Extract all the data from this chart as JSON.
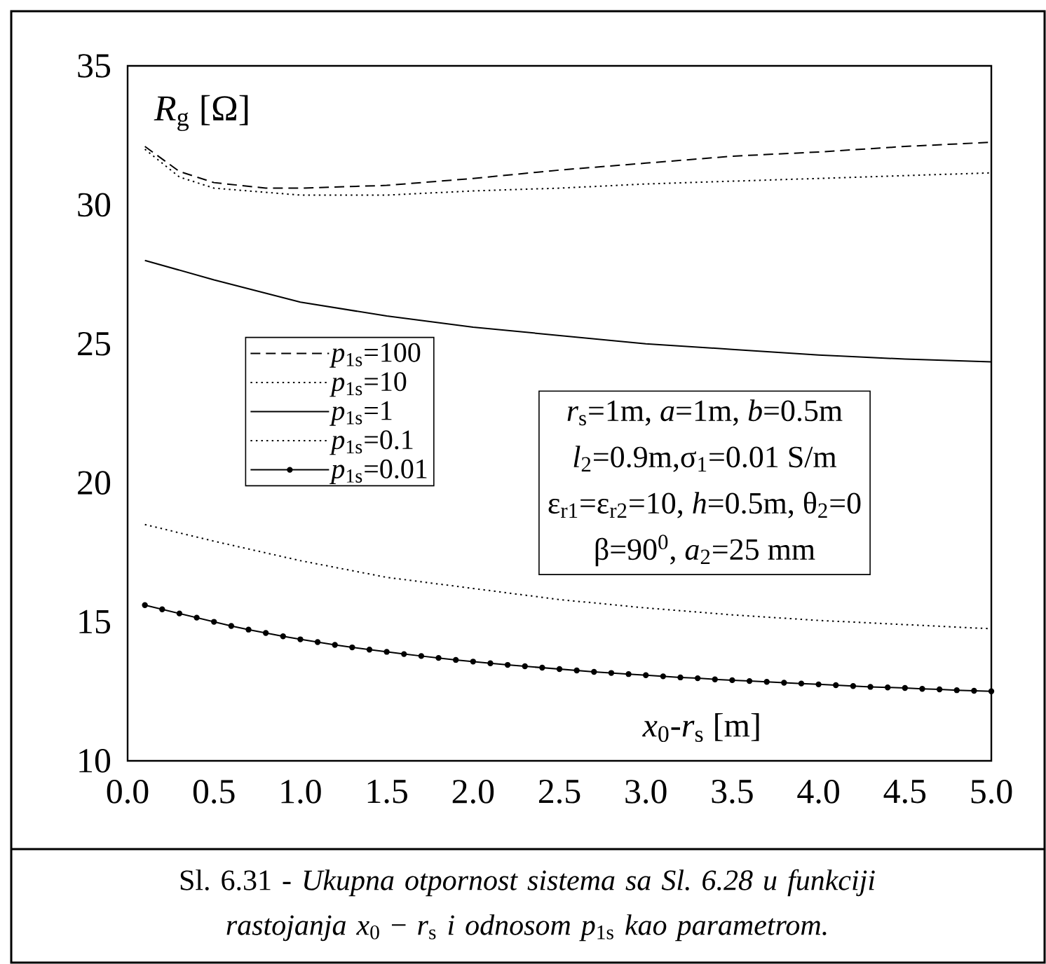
{
  "chart_data": {
    "type": "line",
    "title": "Sl. 6.31 - *Ukupna otpornost sistema sa Sl. 6.28 u funkciji rastojanja* *x*$_{0}$ − *r*$_{s}$ *i odnosom* *p*$_{1s}$ *kao parametrom.*",
    "xlabel": "*x*$_{0}$-*r*$_{s}$ [m]",
    "ylabel": "*R*$_{g}$ [Ω]",
    "annotations": [
      "*r*$_{s}$=1m, *a*=1m, *b*=0.5m",
      "*l*$_{2}$=0.9m,σ$_{1}$=0.01 S/m",
      "ε$_{r1}$=ε$_{r2}$=10, *h*=0.5m, θ$_{2}$=0",
      "β=90$^{0}$, *a*$_{2}$=25 mm"
    ],
    "xlim": [
      0,
      5
    ],
    "ylim": [
      10,
      35
    ],
    "xticks": [
      {
        "value": 0,
        "label": "0.0"
      },
      0.5,
      {
        "value": 1,
        "label": "1.0"
      },
      1.5,
      {
        "value": 2,
        "label": "2.0"
      },
      2.5,
      {
        "value": 3,
        "label": "3.0"
      },
      3.5,
      {
        "value": 4,
        "label": "4.0"
      },
      4.5,
      {
        "value": 5,
        "label": "5.0"
      }
    ],
    "yticks": [
      10,
      15,
      20,
      25,
      30,
      35
    ],
    "legend": "left",
    "grid": false,
    "series": [
      {
        "name": "*p*$_{1s}$=100",
        "color": "#000000",
        "line_style": "dashed",
        "marker": "none",
        "x": [
          0.1,
          0.3,
          0.5,
          0.8,
          1.0,
          1.5,
          2.0,
          2.5,
          3.0,
          3.5,
          4.0,
          4.5,
          5.0
        ],
        "values": [
          32.1,
          31.2,
          30.8,
          30.6,
          30.6,
          30.7,
          30.95,
          31.25,
          31.5,
          31.75,
          31.9,
          32.1,
          32.25
        ]
      },
      {
        "name": "*p*$_{1s}$=10",
        "color": "#000000",
        "line_style": "dotted",
        "marker": "none",
        "x": [
          0.1,
          0.3,
          0.5,
          1.0,
          1.5,
          2.0,
          2.5,
          3.0,
          3.5,
          4.0,
          4.5,
          5.0
        ],
        "values": [
          32.0,
          31.0,
          30.6,
          30.35,
          30.35,
          30.5,
          30.6,
          30.75,
          30.85,
          30.95,
          31.05,
          31.15
        ]
      },
      {
        "name": "*p*$_{1s}$=1",
        "color": "#000000",
        "line_style": "solid",
        "marker": "none",
        "x": [
          0.1,
          0.5,
          1.0,
          1.5,
          2.0,
          2.5,
          3.0,
          3.5,
          4.0,
          4.5,
          5.0
        ],
        "values": [
          28.0,
          27.3,
          26.5,
          26.0,
          25.6,
          25.3,
          25.0,
          24.8,
          24.6,
          24.45,
          24.35
        ]
      },
      {
        "name": "*p*$_{1s}$=0.1",
        "color": "#000000",
        "line_style": "dotted",
        "marker": "none",
        "x": [
          0.1,
          0.5,
          1.0,
          1.5,
          2.0,
          2.5,
          3.0,
          3.5,
          4.0,
          4.5,
          5.0
        ],
        "values": [
          18.5,
          17.9,
          17.2,
          16.6,
          16.2,
          15.8,
          15.5,
          15.25,
          15.05,
          14.9,
          14.75
        ]
      },
      {
        "name": "*p*$_{1s}$=0.01",
        "color": "#000000",
        "line_style": "solid",
        "marker": "circle",
        "x": [
          0.1,
          0.2,
          0.3,
          0.4,
          0.5,
          0.6,
          0.7,
          0.8,
          0.9,
          1.0,
          1.1,
          1.2,
          1.3,
          1.4,
          1.5,
          1.6,
          1.7,
          1.8,
          1.9,
          2.0,
          2.1,
          2.2,
          2.3,
          2.4,
          2.5,
          2.6,
          2.7,
          2.8,
          2.9,
          3.0,
          3.1,
          3.2,
          3.3,
          3.4,
          3.5,
          3.6,
          3.7,
          3.8,
          3.9,
          4.0,
          4.1,
          4.2,
          4.3,
          4.4,
          4.5,
          4.6,
          4.7,
          4.8,
          4.9,
          5.0
        ],
        "values": [
          15.6,
          15.45,
          15.3,
          15.15,
          15.0,
          14.85,
          14.72,
          14.6,
          14.48,
          14.37,
          14.27,
          14.17,
          14.08,
          14.0,
          13.92,
          13.84,
          13.77,
          13.7,
          13.63,
          13.57,
          13.51,
          13.45,
          13.4,
          13.35,
          13.3,
          13.25,
          13.2,
          13.16,
          13.12,
          13.08,
          13.04,
          13.0,
          12.97,
          12.93,
          12.9,
          12.87,
          12.84,
          12.81,
          12.78,
          12.75,
          12.72,
          12.69,
          12.66,
          12.64,
          12.62,
          12.59,
          12.57,
          12.54,
          12.52,
          12.5
        ]
      }
    ]
  }
}
